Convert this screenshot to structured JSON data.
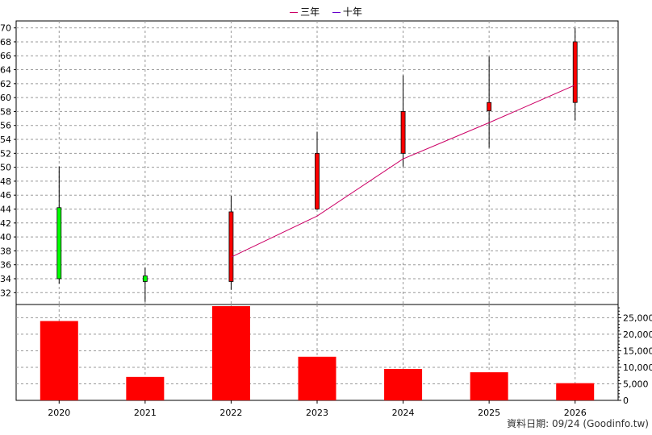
{
  "legend": [
    {
      "label": "三年",
      "color": "#cc0066"
    },
    {
      "label": "十年",
      "color": "#6600cc"
    }
  ],
  "footer": "資料日期: 09/24  (Goodinfo.tw)",
  "colors": {
    "up": "#ff0000",
    "down": "#00ff00",
    "wick": "#000000",
    "grid": "#999999",
    "ma3": "#cc0066"
  },
  "chart_data": [
    {
      "type": "candlestick",
      "categories": [
        "2020",
        "2021",
        "2022",
        "2023",
        "2024",
        "2025",
        "2026"
      ],
      "ohlc": [
        {
          "x": "2020",
          "open": 44.2,
          "high": 50.1,
          "low": 33.3,
          "close": 34.0
        },
        {
          "x": "2021",
          "open": 34.4,
          "high": 35.6,
          "low": 30.7,
          "close": 33.6
        },
        {
          "x": "2022",
          "open": 33.6,
          "high": 45.9,
          "low": 32.4,
          "close": 43.6
        },
        {
          "x": "2023",
          "open": 44.0,
          "high": 55.1,
          "low": 43.9,
          "close": 52.0
        },
        {
          "x": "2024",
          "open": 52.0,
          "high": 63.2,
          "low": 50.1,
          "close": 58.0
        },
        {
          "x": "2025",
          "open": 58.1,
          "high": 65.9,
          "low": 52.8,
          "close": 59.3
        },
        {
          "x": "2026",
          "open": 59.3,
          "high": 70.0,
          "low": 56.7,
          "close": 68.0
        }
      ],
      "series": [
        {
          "name": "三年",
          "values": [
            null,
            null,
            37.1,
            43.0,
            51.2,
            56.4,
            61.8
          ]
        }
      ],
      "ylim": [
        30.3,
        71
      ],
      "yticks": [
        32,
        34,
        36,
        38,
        40,
        42,
        44,
        46,
        48,
        50,
        52,
        54,
        56,
        58,
        60,
        62,
        64,
        66,
        68,
        70
      ],
      "grid": true
    },
    {
      "type": "bar",
      "categories": [
        "2020",
        "2021",
        "2022",
        "2023",
        "2024",
        "2025",
        "2026"
      ],
      "values": [
        24000,
        7100,
        28500,
        13200,
        9500,
        8500,
        5200
      ],
      "ylim": [
        0,
        29000
      ],
      "yticks": [
        "0",
        "5,000",
        "10,000",
        "15,000",
        "20,000",
        "25,000"
      ],
      "grid": true
    }
  ]
}
